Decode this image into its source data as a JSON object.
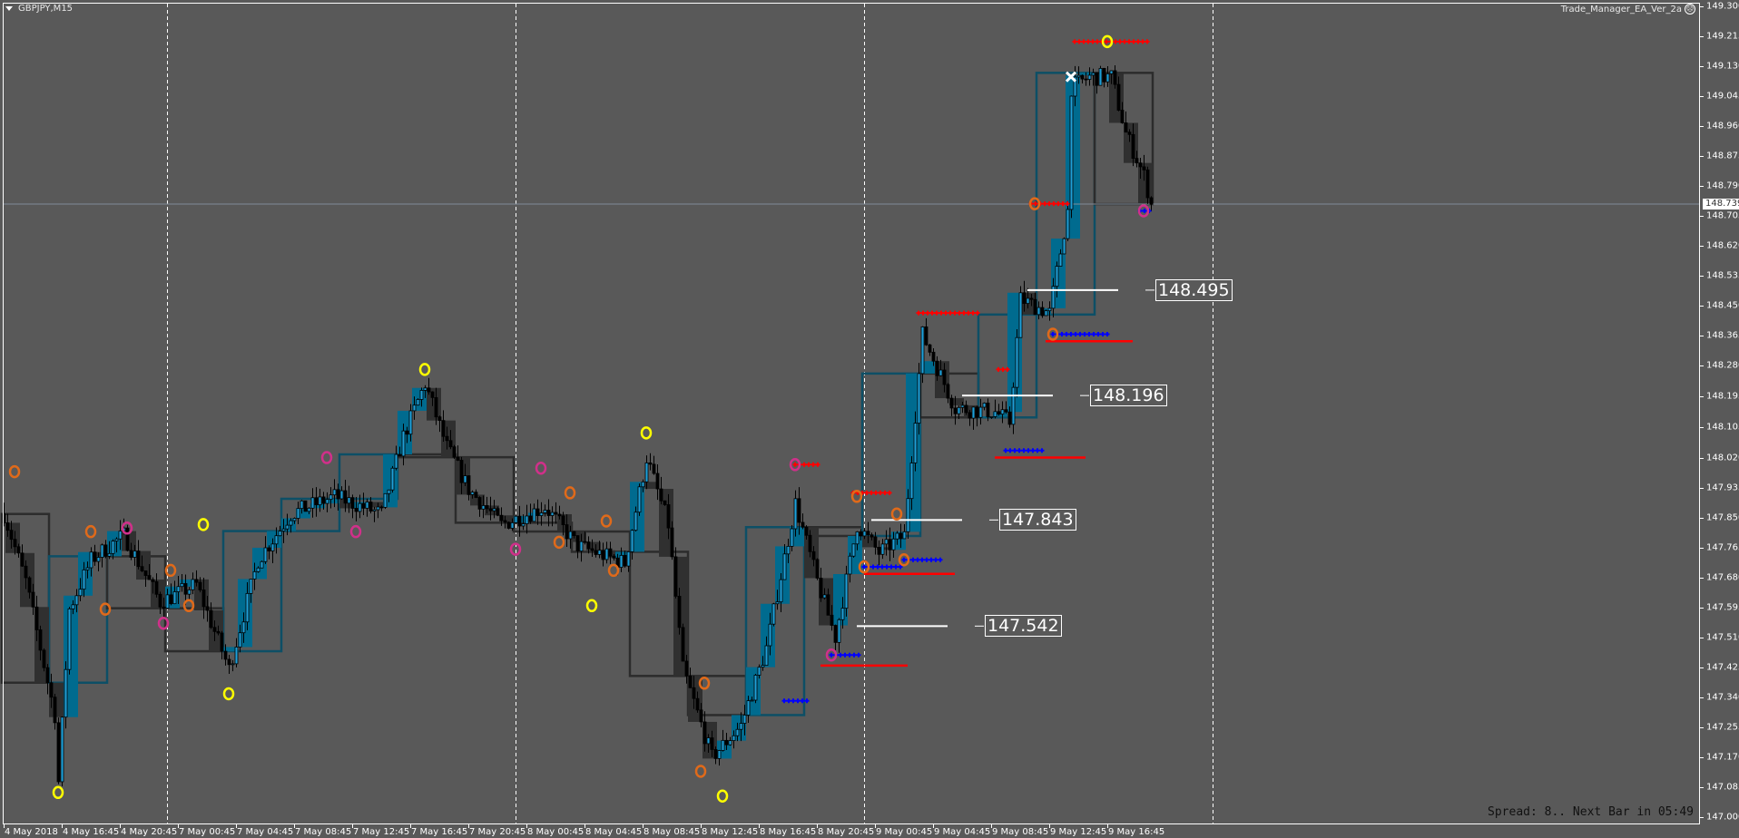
{
  "header": {
    "symbol": "GBPJPY,M15",
    "ea_name": "Trade_Manager_EA_Ver_2a",
    "ea_icon": "frown-face-icon"
  },
  "status": {
    "spread_text": "Spread: 8.. Next Bar in 05:49"
  },
  "colors": {
    "background": "#595959",
    "bull_candle": "#1ea0d8",
    "bear_candle": "#000000",
    "h1_bull_block": "#006b8f",
    "h1_bear_block": "#303030",
    "h4_bull_box": "#0d4f66",
    "h4_bear_box": "#2c2c2c",
    "orange": "#e06a1a",
    "yellow": "#ffff00",
    "magenta": "#d0308a",
    "red": "#ff0000",
    "blue": "#0000ff"
  },
  "chart_data": {
    "type": "candlestick",
    "timeframe": "M15",
    "current_price": "148.739",
    "y_range": [
      147.0,
      149.3
    ],
    "grid": false,
    "price_ticks": [
      "149.300",
      "149.215",
      "149.130",
      "149.045",
      "148.960",
      "148.875",
      "148.790",
      "148.705",
      "148.620",
      "148.535",
      "148.450",
      "148.365",
      "148.280",
      "148.195",
      "148.105",
      "148.020",
      "147.935",
      "147.850",
      "147.765",
      "147.680",
      "147.595",
      "147.510",
      "147.425",
      "147.340",
      "147.255",
      "147.170",
      "147.085",
      "147.000"
    ],
    "time_ticks": [
      "4 May 2018",
      "4 May 16:45",
      "4 May 20:45",
      "7 May 00:45",
      "7 May 04:45",
      "7 May 08:45",
      "7 May 12:45",
      "7 May 16:45",
      "7 May 20:45",
      "8 May 00:45",
      "8 May 04:45",
      "8 May 08:45",
      "8 May 12:45",
      "8 May 16:45",
      "8 May 20:45",
      "9 May 00:45",
      "9 May 04:45",
      "9 May 08:45",
      "9 May 12:45",
      "9 May 16:45"
    ],
    "day_separators": [
      "7 May 00:00",
      "8 May 00:00",
      "9 May 00:00",
      "10 May 00:00"
    ],
    "price_path": [
      [
        "4 May 12:45",
        147.86
      ],
      [
        "4 May 14:15",
        147.67
      ],
      [
        "4 May 16:15",
        147.29
      ],
      [
        "4 May 16:30",
        147.1
      ],
      [
        "4 May 17:15",
        147.59
      ],
      [
        "4 May 18:45",
        147.73
      ],
      [
        "4 May 21:00",
        147.8
      ],
      [
        "4 May 23:30",
        147.61
      ],
      [
        "7 May 02:00",
        147.66
      ],
      [
        "7 May 04:15",
        147.42
      ],
      [
        "7 May 06:15",
        147.73
      ],
      [
        "7 May 08:30",
        147.86
      ],
      [
        "7 May 11:30",
        147.91
      ],
      [
        "7 May 14:45",
        147.86
      ],
      [
        "7 May 16:15",
        148.08
      ],
      [
        "7 May 17:45",
        148.23
      ],
      [
        "7 May 19:15",
        148.05
      ],
      [
        "7 May 20:45",
        147.93
      ],
      [
        "7 May 23:00",
        147.83
      ],
      [
        "8 May 02:00",
        147.88
      ],
      [
        "8 May 04:15",
        147.77
      ],
      [
        "8 May 07:30",
        147.72
      ],
      [
        "8 May 09:00",
        148.02
      ],
      [
        "8 May 10:30",
        147.83
      ],
      [
        "8 May 11:30",
        147.42
      ],
      [
        "8 May 13:30",
        147.17
      ],
      [
        "8 May 15:30",
        147.26
      ],
      [
        "8 May 17:15",
        147.48
      ],
      [
        "8 May 19:15",
        147.89
      ],
      [
        "8 May 20:45",
        147.67
      ],
      [
        "8 May 22:00",
        147.51
      ],
      [
        "8 May 23:30",
        147.83
      ],
      [
        "9 May 01:00",
        147.75
      ],
      [
        "9 May 02:45",
        147.8
      ],
      [
        "9 May 04:00",
        148.37
      ],
      [
        "9 May 06:15",
        148.16
      ],
      [
        "9 May 09:00",
        148.15
      ],
      [
        "9 May 10:00",
        148.12
      ],
      [
        "9 May 10:45",
        148.47
      ],
      [
        "9 May 12:45",
        148.43
      ],
      [
        "9 May 14:00",
        148.72
      ],
      [
        "9 May 14:15",
        149.07
      ],
      [
        "9 May 15:30",
        149.1
      ],
      [
        "9 May 17:00",
        149.1
      ],
      [
        "9 May 18:00",
        148.94
      ],
      [
        "9 May 19:15",
        148.82
      ],
      [
        "9 May 19:45",
        148.739
      ]
    ],
    "level_labels": [
      {
        "time": "8 May 23:30",
        "price": "147.542"
      },
      {
        "time": "9 May 00:30",
        "price": "147.843"
      },
      {
        "time": "9 May 06:45",
        "price": "148.196"
      },
      {
        "time": "9 May 11:15",
        "price": "148.495"
      }
    ],
    "red_dotted_lines": [
      {
        "from": "9 May 03:45",
        "to": "9 May 08:00",
        "price": 148.43
      },
      {
        "from": "8 May 19:15",
        "to": "8 May 21:00",
        "price": 148.0
      },
      {
        "from": "8 May 23:15",
        "to": "9 May 02:00",
        "price": 147.92
      },
      {
        "from": "9 May 14:30",
        "to": "9 May 19:45",
        "price": 149.2
      },
      {
        "from": "9 May 11:30",
        "to": "9 May 14:00",
        "price": 148.74
      },
      {
        "from": "9 May 09:15",
        "to": "9 May 10:00",
        "price": 148.27
      }
    ],
    "blue_dotted_lines": [
      {
        "from": "8 May 18:30",
        "to": "8 May 20:15",
        "price": 147.33
      },
      {
        "from": "8 May 21:45",
        "to": "8 May 23:45",
        "price": 147.46
      },
      {
        "from": "9 May 00:00",
        "to": "9 May 02:30",
        "price": 147.71
      },
      {
        "from": "9 May 02:45",
        "to": "9 May 05:15",
        "price": 147.73
      },
      {
        "from": "9 May 13:00",
        "to": "9 May 17:00",
        "price": 148.37
      },
      {
        "from": "9 May 09:45",
        "to": "9 May 12:30",
        "price": 148.04
      },
      {
        "from": "9 May 19:00",
        "to": "9 May 19:45",
        "price": 148.72
      }
    ],
    "red_solid_lines": [
      {
        "from": "8 May 21:00",
        "to": "9 May 03:00",
        "price": 147.43
      },
      {
        "from": "9 May 00:00",
        "to": "9 May 06:15",
        "price": 147.69
      },
      {
        "from": "9 May 09:00",
        "to": "9 May 15:15",
        "price": 148.02
      },
      {
        "from": "9 May 12:30",
        "to": "9 May 18:30",
        "price": 148.35
      }
    ],
    "circle_markers": [
      {
        "time": "4 May 13:30",
        "price": 147.98,
        "color": "orange"
      },
      {
        "time": "4 May 16:30",
        "price": 147.07,
        "color": "yellow"
      },
      {
        "time": "4 May 18:45",
        "price": 147.81,
        "color": "orange"
      },
      {
        "time": "4 May 19:45",
        "price": 147.59,
        "color": "orange"
      },
      {
        "time": "4 May 21:15",
        "price": 147.82,
        "color": "magenta"
      },
      {
        "time": "4 May 23:45",
        "price": 147.55,
        "color": "magenta"
      },
      {
        "time": "7 May 00:15",
        "price": 147.7,
        "color": "orange"
      },
      {
        "time": "7 May 01:30",
        "price": 147.6,
        "color": "orange"
      },
      {
        "time": "7 May 02:30",
        "price": 147.83,
        "color": "yellow"
      },
      {
        "time": "7 May 04:15",
        "price": 147.35,
        "color": "yellow"
      },
      {
        "time": "7 May 11:00",
        "price": 148.02,
        "color": "magenta"
      },
      {
        "time": "7 May 13:00",
        "price": 147.81,
        "color": "magenta"
      },
      {
        "time": "7 May 17:45",
        "price": 148.27,
        "color": "yellow"
      },
      {
        "time": "8 May 00:00",
        "price": 147.76,
        "color": "magenta"
      },
      {
        "time": "8 May 01:45",
        "price": 147.99,
        "color": "magenta"
      },
      {
        "time": "8 May 03:00",
        "price": 147.78,
        "color": "orange"
      },
      {
        "time": "8 May 03:45",
        "price": 147.92,
        "color": "orange"
      },
      {
        "time": "8 May 05:15",
        "price": 147.6,
        "color": "yellow"
      },
      {
        "time": "8 May 06:15",
        "price": 147.84,
        "color": "orange"
      },
      {
        "time": "8 May 06:45",
        "price": 147.7,
        "color": "orange"
      },
      {
        "time": "8 May 09:00",
        "price": 148.09,
        "color": "yellow"
      },
      {
        "time": "8 May 13:00",
        "price": 147.38,
        "color": "orange"
      },
      {
        "time": "8 May 12:45",
        "price": 147.13,
        "color": "orange"
      },
      {
        "time": "8 May 14:15",
        "price": 147.06,
        "color": "yellow"
      },
      {
        "time": "8 May 19:15",
        "price": 148.0,
        "color": "magenta"
      },
      {
        "time": "8 May 21:45",
        "price": 147.46,
        "color": "magenta"
      },
      {
        "time": "8 May 23:30",
        "price": 147.91,
        "color": "orange"
      },
      {
        "time": "9 May 00:00",
        "price": 147.71,
        "color": "orange"
      },
      {
        "time": "9 May 02:15",
        "price": 147.86,
        "color": "orange"
      },
      {
        "time": "9 May 02:45",
        "price": 147.73,
        "color": "orange"
      },
      {
        "time": "9 May 11:45",
        "price": 148.74,
        "color": "orange"
      },
      {
        "time": "9 May 13:00",
        "price": 148.37,
        "color": "orange"
      },
      {
        "time": "9 May 16:45",
        "price": 149.2,
        "color": "yellow"
      },
      {
        "time": "9 May 19:15",
        "price": 148.72,
        "color": "magenta"
      }
    ],
    "x_markers": [
      {
        "time": "9 May 14:15",
        "price": 149.1
      }
    ]
  }
}
